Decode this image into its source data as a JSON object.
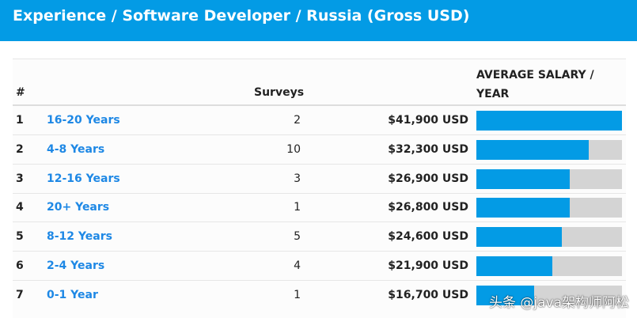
{
  "header": {
    "title": "Experience / Software Developer / Russia (Gross USD)"
  },
  "table": {
    "columns": {
      "rank": "#",
      "experience": "",
      "surveys": "Surveys",
      "salary": "",
      "avg_salary": "AVERAGE SALARY / YEAR"
    },
    "max_salary": 41900,
    "rows": [
      {
        "rank": "1",
        "experience": "16-20 Years",
        "surveys": "2",
        "salary": "$41,900 USD",
        "value": 41900
      },
      {
        "rank": "2",
        "experience": "4-8 Years",
        "surveys": "10",
        "salary": "$32,300 USD",
        "value": 32300
      },
      {
        "rank": "3",
        "experience": "12-16 Years",
        "surveys": "3",
        "salary": "$26,900 USD",
        "value": 26900
      },
      {
        "rank": "4",
        "experience": "20+ Years",
        "surveys": "1",
        "salary": "$26,800 USD",
        "value": 26800
      },
      {
        "rank": "5",
        "experience": "8-12 Years",
        "surveys": "5",
        "salary": "$24,600 USD",
        "value": 24600
      },
      {
        "rank": "6",
        "experience": "2-4 Years",
        "surveys": "4",
        "salary": "$21,900 USD",
        "value": 21900
      },
      {
        "rank": "7",
        "experience": "0-1 Year",
        "surveys": "1",
        "salary": "$16,700 USD",
        "value": 16700
      }
    ]
  },
  "colors": {
    "accent": "#039be5",
    "link": "#1e88e5",
    "bar_track": "#d4d4d4"
  },
  "watermark": "头条 @java架构师阿松"
}
